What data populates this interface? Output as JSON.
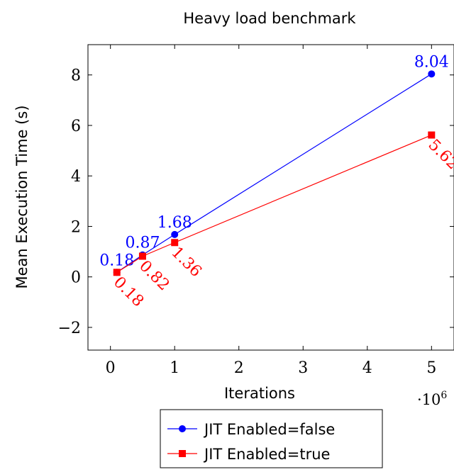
{
  "chart_data": {
    "type": "line",
    "title": "Heavy load benchmark",
    "xlabel": "Iterations",
    "ylabel": "Mean Execution Time (s)",
    "x_scale_note_base": "·10",
    "x_scale_note_exp": "6",
    "xlim": [
      -0.35,
      5.35
    ],
    "ylim": [
      -2.9,
      9.2
    ],
    "xticks": [
      0,
      1,
      2,
      3,
      4,
      5
    ],
    "yticks": [
      -2,
      0,
      2,
      4,
      6,
      8
    ],
    "ytick_labels": [
      "−2",
      "0",
      "2",
      "4",
      "6",
      "8"
    ],
    "grid": false,
    "legend_position": "bottom-center",
    "series": [
      {
        "name": "JIT Enabled=false",
        "color": "#0000ff",
        "marker": "circle",
        "x": [
          0.1,
          0.5,
          1,
          5
        ],
        "y": [
          0.18,
          0.87,
          1.68,
          8.04
        ],
        "labels": [
          "0.18",
          "0.87",
          "1.68",
          "8.04"
        ],
        "label_position": "above"
      },
      {
        "name": "JIT Enabled=true",
        "color": "#ff0000",
        "marker": "square",
        "x": [
          0.1,
          0.5,
          1,
          5
        ],
        "y": [
          0.18,
          0.82,
          1.36,
          5.62
        ],
        "labels": [
          "0.18",
          "0.82",
          "1.36",
          "5.62"
        ],
        "label_position": "below-rotated"
      }
    ]
  }
}
